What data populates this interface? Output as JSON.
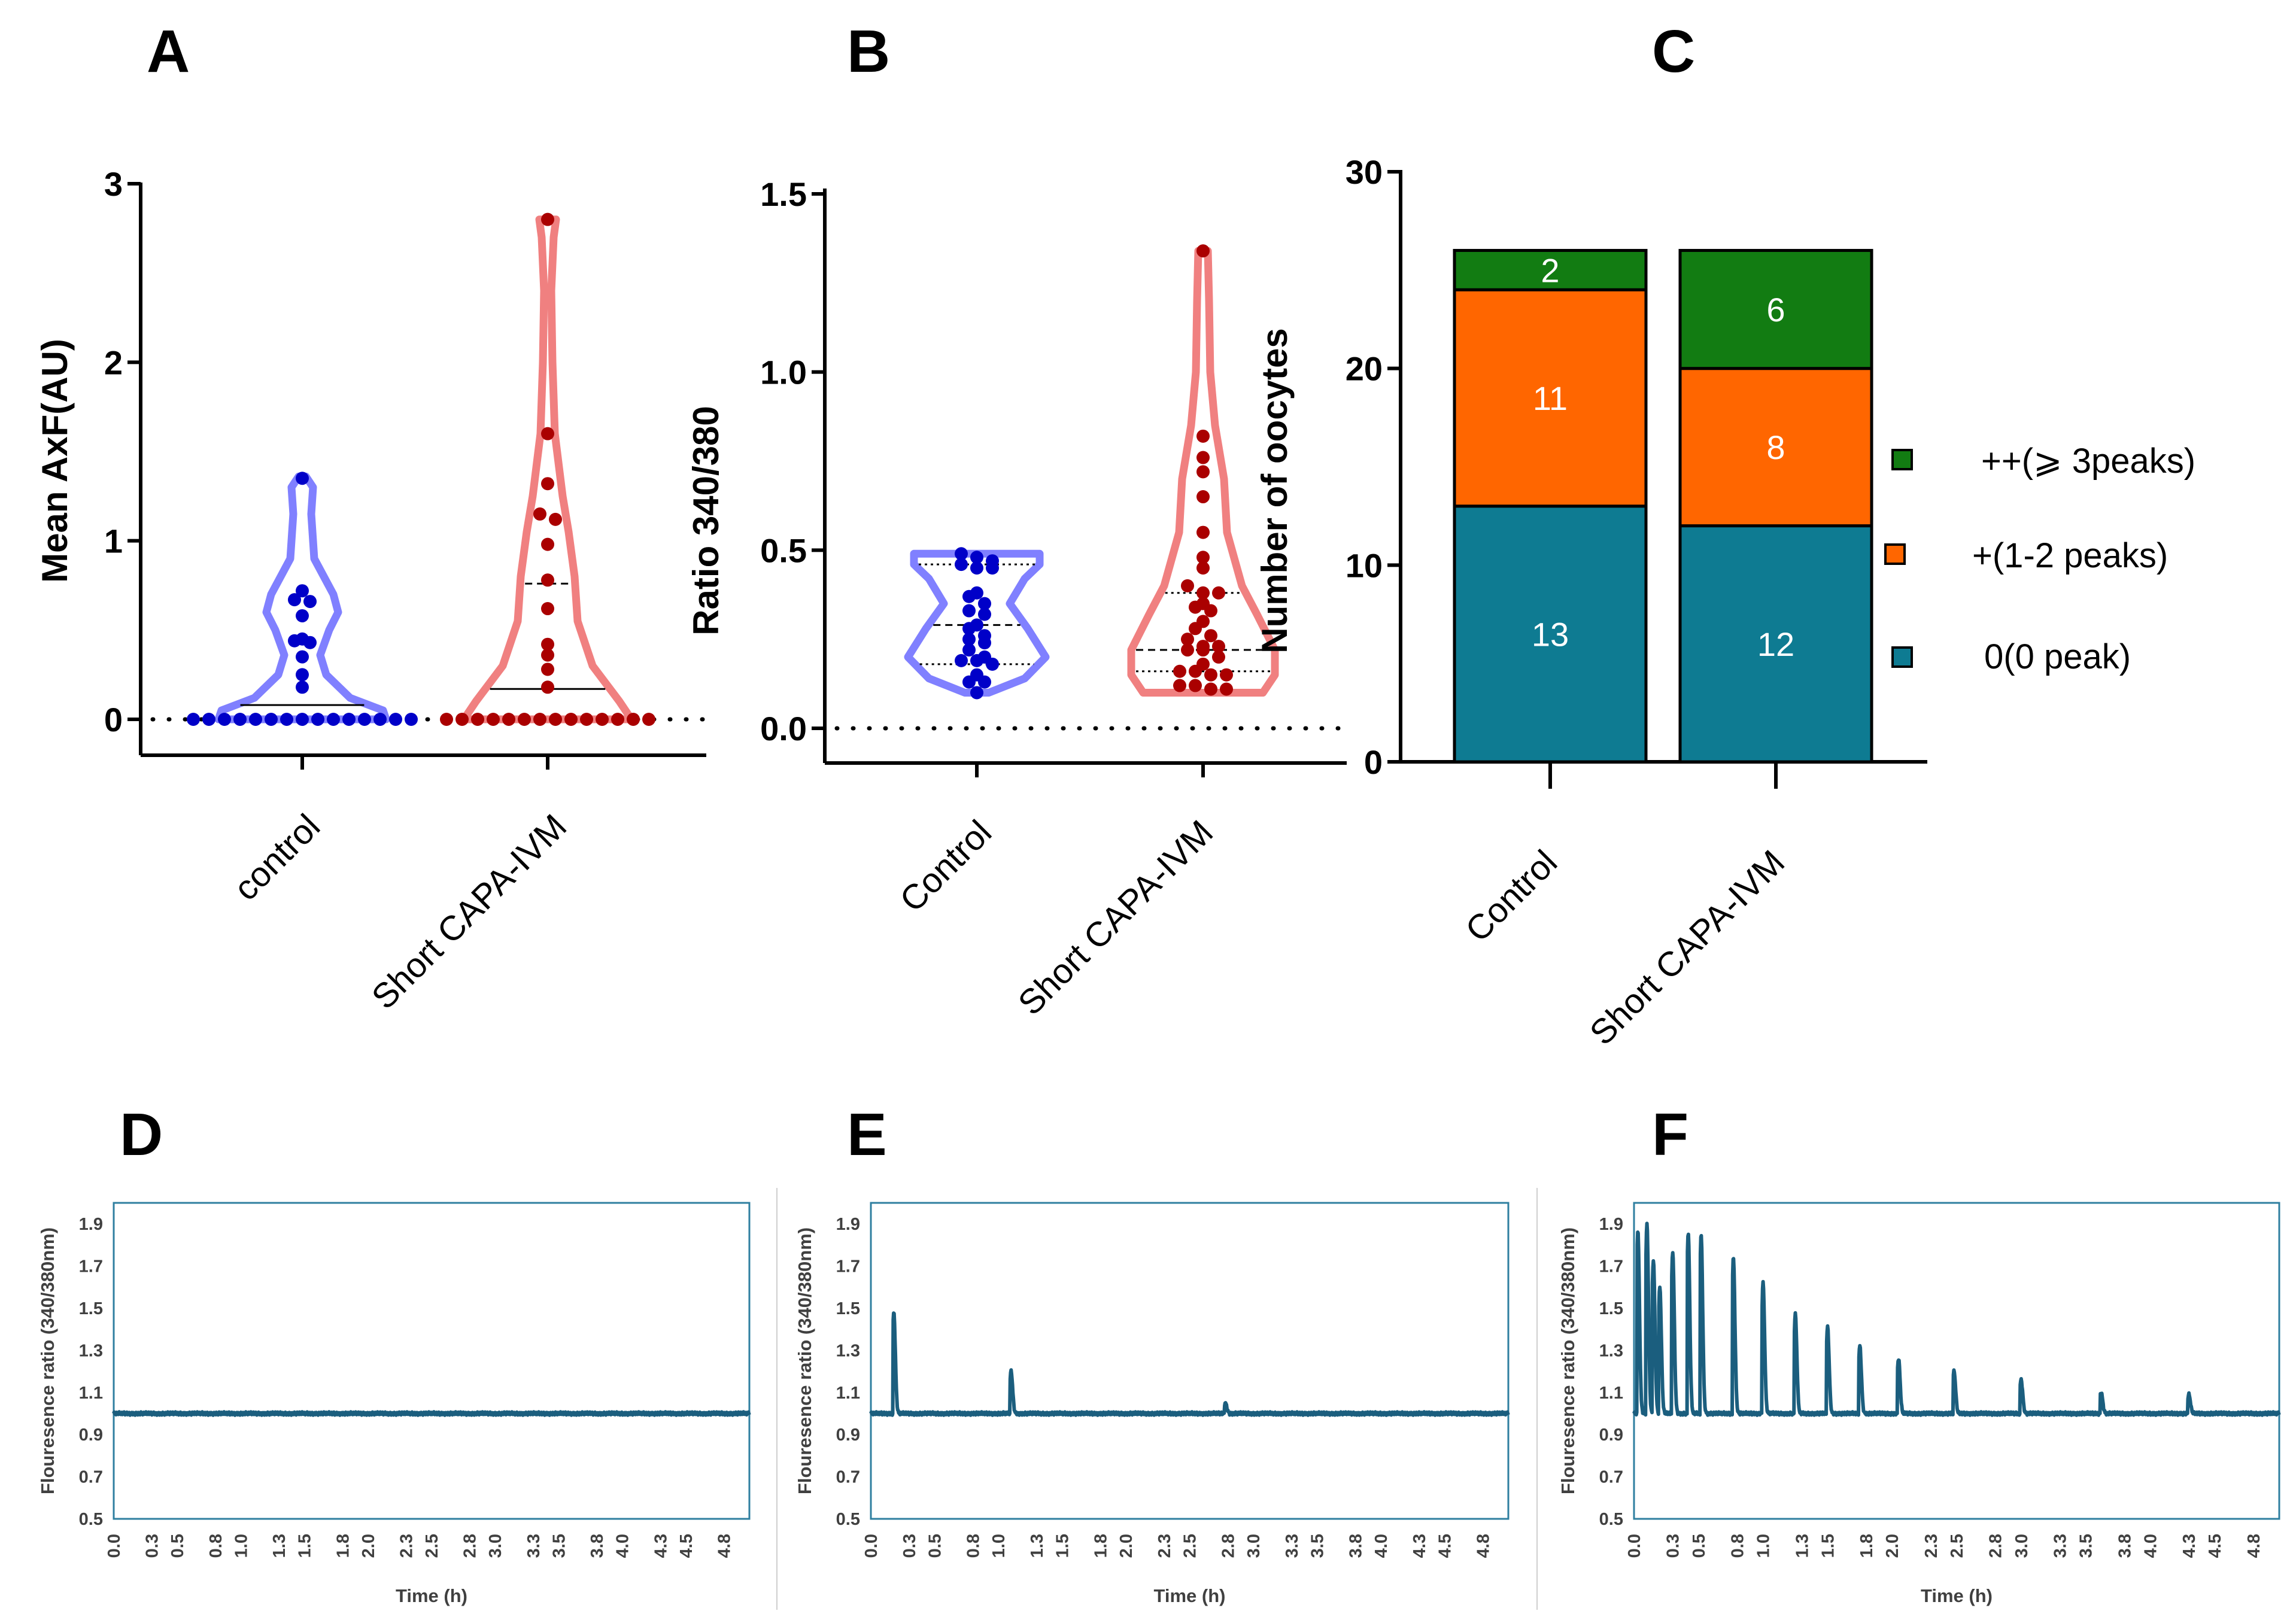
{
  "chart_data": [
    {
      "panel": "A",
      "type": "violin",
      "ylabel": "Mean AxF(AU)",
      "ylim": [
        0,
        3
      ],
      "yticks": [
        "0",
        "1",
        "2",
        "3"
      ],
      "categories": [
        "control",
        "Short CAPA-IVM"
      ],
      "colors": [
        "#8080ff",
        "#f08080"
      ],
      "point_colors": [
        "#0000c8",
        "#aa0000"
      ],
      "series": [
        {
          "name": "control",
          "median": 0.08,
          "points": [
            1.35,
            0.72,
            0.67,
            0.66,
            0.58,
            0.45,
            0.44,
            0.43,
            0.35,
            0.25,
            0.18,
            0,
            0,
            0,
            0,
            0,
            0,
            0,
            0,
            0,
            0,
            0,
            0,
            0,
            0,
            0
          ]
        },
        {
          "name": "Short CAPA-IVM",
          "median": 0.17,
          "quartile": 0.76,
          "points": [
            2.8,
            1.6,
            1.32,
            1.15,
            1.12,
            0.98,
            0.78,
            0.62,
            0.42,
            0.36,
            0.28,
            0.18,
            0,
            0,
            0,
            0,
            0,
            0,
            0,
            0,
            0,
            0,
            0,
            0,
            0,
            0
          ]
        }
      ]
    },
    {
      "panel": "B",
      "type": "violin",
      "ylabel": "Ratio 340/380",
      "ylim": [
        0,
        1.5
      ],
      "yticks": [
        "0.0",
        "0.5",
        "1.0",
        "1.5"
      ],
      "categories": [
        "Control",
        "Short CAPA-IVM"
      ],
      "colors": [
        "#8080ff",
        "#f08080"
      ],
      "point_colors": [
        "#0000c8",
        "#aa0000"
      ],
      "series": [
        {
          "name": "Control",
          "median": 0.29,
          "q1": 0.18,
          "q3": 0.46,
          "points": [
            0.49,
            0.48,
            0.47,
            0.46,
            0.45,
            0.45,
            0.38,
            0.37,
            0.35,
            0.33,
            0.32,
            0.29,
            0.28,
            0.26,
            0.25,
            0.24,
            0.22,
            0.2,
            0.19,
            0.19,
            0.18,
            0.15,
            0.13,
            0.13,
            0.1
          ]
        },
        {
          "name": "Short CAPA-IVM",
          "median": 0.22,
          "q1": 0.16,
          "q3": 0.38,
          "points": [
            1.34,
            0.82,
            0.76,
            0.72,
            0.65,
            0.55,
            0.48,
            0.45,
            0.4,
            0.38,
            0.38,
            0.35,
            0.34,
            0.33,
            0.3,
            0.28,
            0.26,
            0.25,
            0.23,
            0.23,
            0.22,
            0.22,
            0.2,
            0.18,
            0.16,
            0.16,
            0.15,
            0.15,
            0.12,
            0.12,
            0.11,
            0.11
          ]
        }
      ]
    },
    {
      "panel": "C",
      "type": "bar",
      "stacked": true,
      "ylabel": "Number of oocytes",
      "ylim": [
        0,
        30
      ],
      "yticks": [
        "0",
        "10",
        "20",
        "30"
      ],
      "categories": [
        "Control",
        "Short CAPA-IVM"
      ],
      "series": [
        {
          "name": "0(0 peak)",
          "color": "#0e7b92",
          "values": [
            13,
            12
          ],
          "labels": [
            "13",
            "12"
          ]
        },
        {
          "name": "+(1-2 peaks)",
          "color": "#ff6600",
          "values": [
            11,
            8
          ],
          "labels": [
            "11",
            "8"
          ]
        },
        {
          "name": "++(⩾ 3peaks)",
          "color": "#127c12",
          "values": [
            2,
            6
          ],
          "labels": [
            "2",
            "6"
          ]
        }
      ],
      "legend": [
        "++(⩾ 3peaks)",
        "+(1-2 peaks)",
        "0(0 peak)"
      ]
    },
    {
      "panel": "D",
      "type": "line",
      "xlabel": "Time (h)",
      "ylabel": "Flouresence ratio (340/380nm)",
      "ylim": [
        0.5,
        2.0
      ],
      "xlim": [
        0,
        5
      ],
      "yticks": [
        "0.5",
        "0.7",
        "0.9",
        "1.1",
        "1.3",
        "1.5",
        "1.7",
        "1.9"
      ],
      "xticks": [
        "0.0",
        "0.3",
        "0.5",
        "0.8",
        "1.0",
        "1.3",
        "1.5",
        "1.8",
        "2.0",
        "2.3",
        "2.5",
        "2.8",
        "3.0",
        "3.3",
        "3.5",
        "3.8",
        "4.0",
        "4.3",
        "4.5",
        "4.8"
      ],
      "baseline": 1.0,
      "peaks": []
    },
    {
      "panel": "E",
      "type": "line",
      "xlabel": "Time (h)",
      "ylabel": "Flouresence ratio (340/380nm)",
      "ylim": [
        0.5,
        2.0
      ],
      "xlim": [
        0,
        5
      ],
      "yticks": [
        "0.5",
        "0.7",
        "0.9",
        "1.1",
        "1.3",
        "1.5",
        "1.7",
        "1.9"
      ],
      "xticks": [
        "0.0",
        "0.3",
        "0.5",
        "0.8",
        "1.0",
        "1.3",
        "1.5",
        "1.8",
        "2.0",
        "2.3",
        "2.5",
        "2.8",
        "3.0",
        "3.3",
        "3.5",
        "3.8",
        "4.0",
        "4.3",
        "4.5",
        "4.8"
      ],
      "baseline": 1.0,
      "peaks": [
        [
          0.18,
          1.48
        ],
        [
          1.1,
          1.2
        ],
        [
          2.78,
          1.05
        ]
      ]
    },
    {
      "panel": "F",
      "type": "line",
      "xlabel": "Time (h)",
      "ylabel": "Flouresence ratio (340/380nm)",
      "ylim": [
        0.5,
        2.0
      ],
      "xlim": [
        0,
        5
      ],
      "yticks": [
        "0.5",
        "0.7",
        "0.9",
        "1.1",
        "1.3",
        "1.5",
        "1.7",
        "1.9"
      ],
      "xticks": [
        "0.0",
        "0.3",
        "0.5",
        "0.8",
        "1.0",
        "1.3",
        "1.5",
        "1.8",
        "2.0",
        "2.3",
        "2.5",
        "2.8",
        "3.0",
        "3.3",
        "3.5",
        "3.8",
        "4.0",
        "4.3",
        "4.5",
        "4.8"
      ],
      "baseline": 1.0,
      "peaks": [
        [
          0.03,
          1.87
        ],
        [
          0.1,
          1.9
        ],
        [
          0.15,
          1.73
        ],
        [
          0.2,
          1.6
        ],
        [
          0.3,
          1.77
        ],
        [
          0.42,
          1.86
        ],
        [
          0.52,
          1.85
        ],
        [
          0.77,
          1.74
        ],
        [
          1.0,
          1.62
        ],
        [
          1.25,
          1.47
        ],
        [
          1.5,
          1.41
        ],
        [
          1.75,
          1.32
        ],
        [
          2.05,
          1.26
        ],
        [
          2.48,
          1.2
        ],
        [
          3.0,
          1.16
        ],
        [
          3.62,
          1.1
        ],
        [
          4.3,
          1.09
        ]
      ]
    }
  ]
}
